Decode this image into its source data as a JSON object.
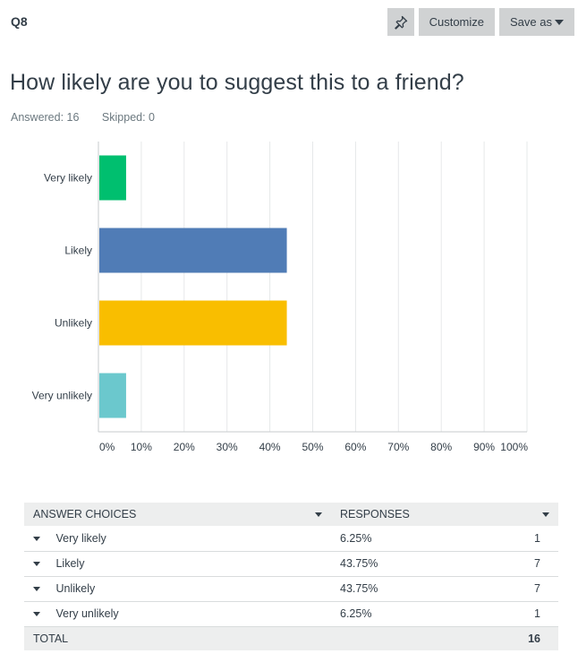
{
  "question_label": "Q8",
  "toolbar": {
    "pin_icon": "pin-icon",
    "customize_label": "Customize",
    "save_as_label": "Save as"
  },
  "question_title": "How likely are you to suggest this to a friend?",
  "stats": {
    "answered": "Answered: 16",
    "skipped": "Skipped: 0"
  },
  "chart_data": {
    "type": "bar",
    "orientation": "horizontal",
    "categories": [
      "Very likely",
      "Likely",
      "Unlikely",
      "Very unlikely"
    ],
    "values": [
      6.25,
      43.75,
      43.75,
      6.25
    ],
    "colors": [
      "#00bf6f",
      "#507cb6",
      "#f9be00",
      "#6bc8cd"
    ],
    "x_ticks": [
      "0%",
      "10%",
      "20%",
      "30%",
      "40%",
      "50%",
      "60%",
      "70%",
      "80%",
      "90%",
      "100%"
    ],
    "xlim": [
      0,
      100
    ],
    "grid": true
  },
  "table": {
    "headers": [
      "ANSWER CHOICES",
      "RESPONSES"
    ],
    "rows": [
      {
        "choice": "Very likely",
        "percent": "6.25%",
        "count": "1"
      },
      {
        "choice": "Likely",
        "percent": "43.75%",
        "count": "7"
      },
      {
        "choice": "Unlikely",
        "percent": "43.75%",
        "count": "7"
      },
      {
        "choice": "Very unlikely",
        "percent": "6.25%",
        "count": "1"
      }
    ],
    "total_label": "TOTAL",
    "total_count": "16"
  }
}
